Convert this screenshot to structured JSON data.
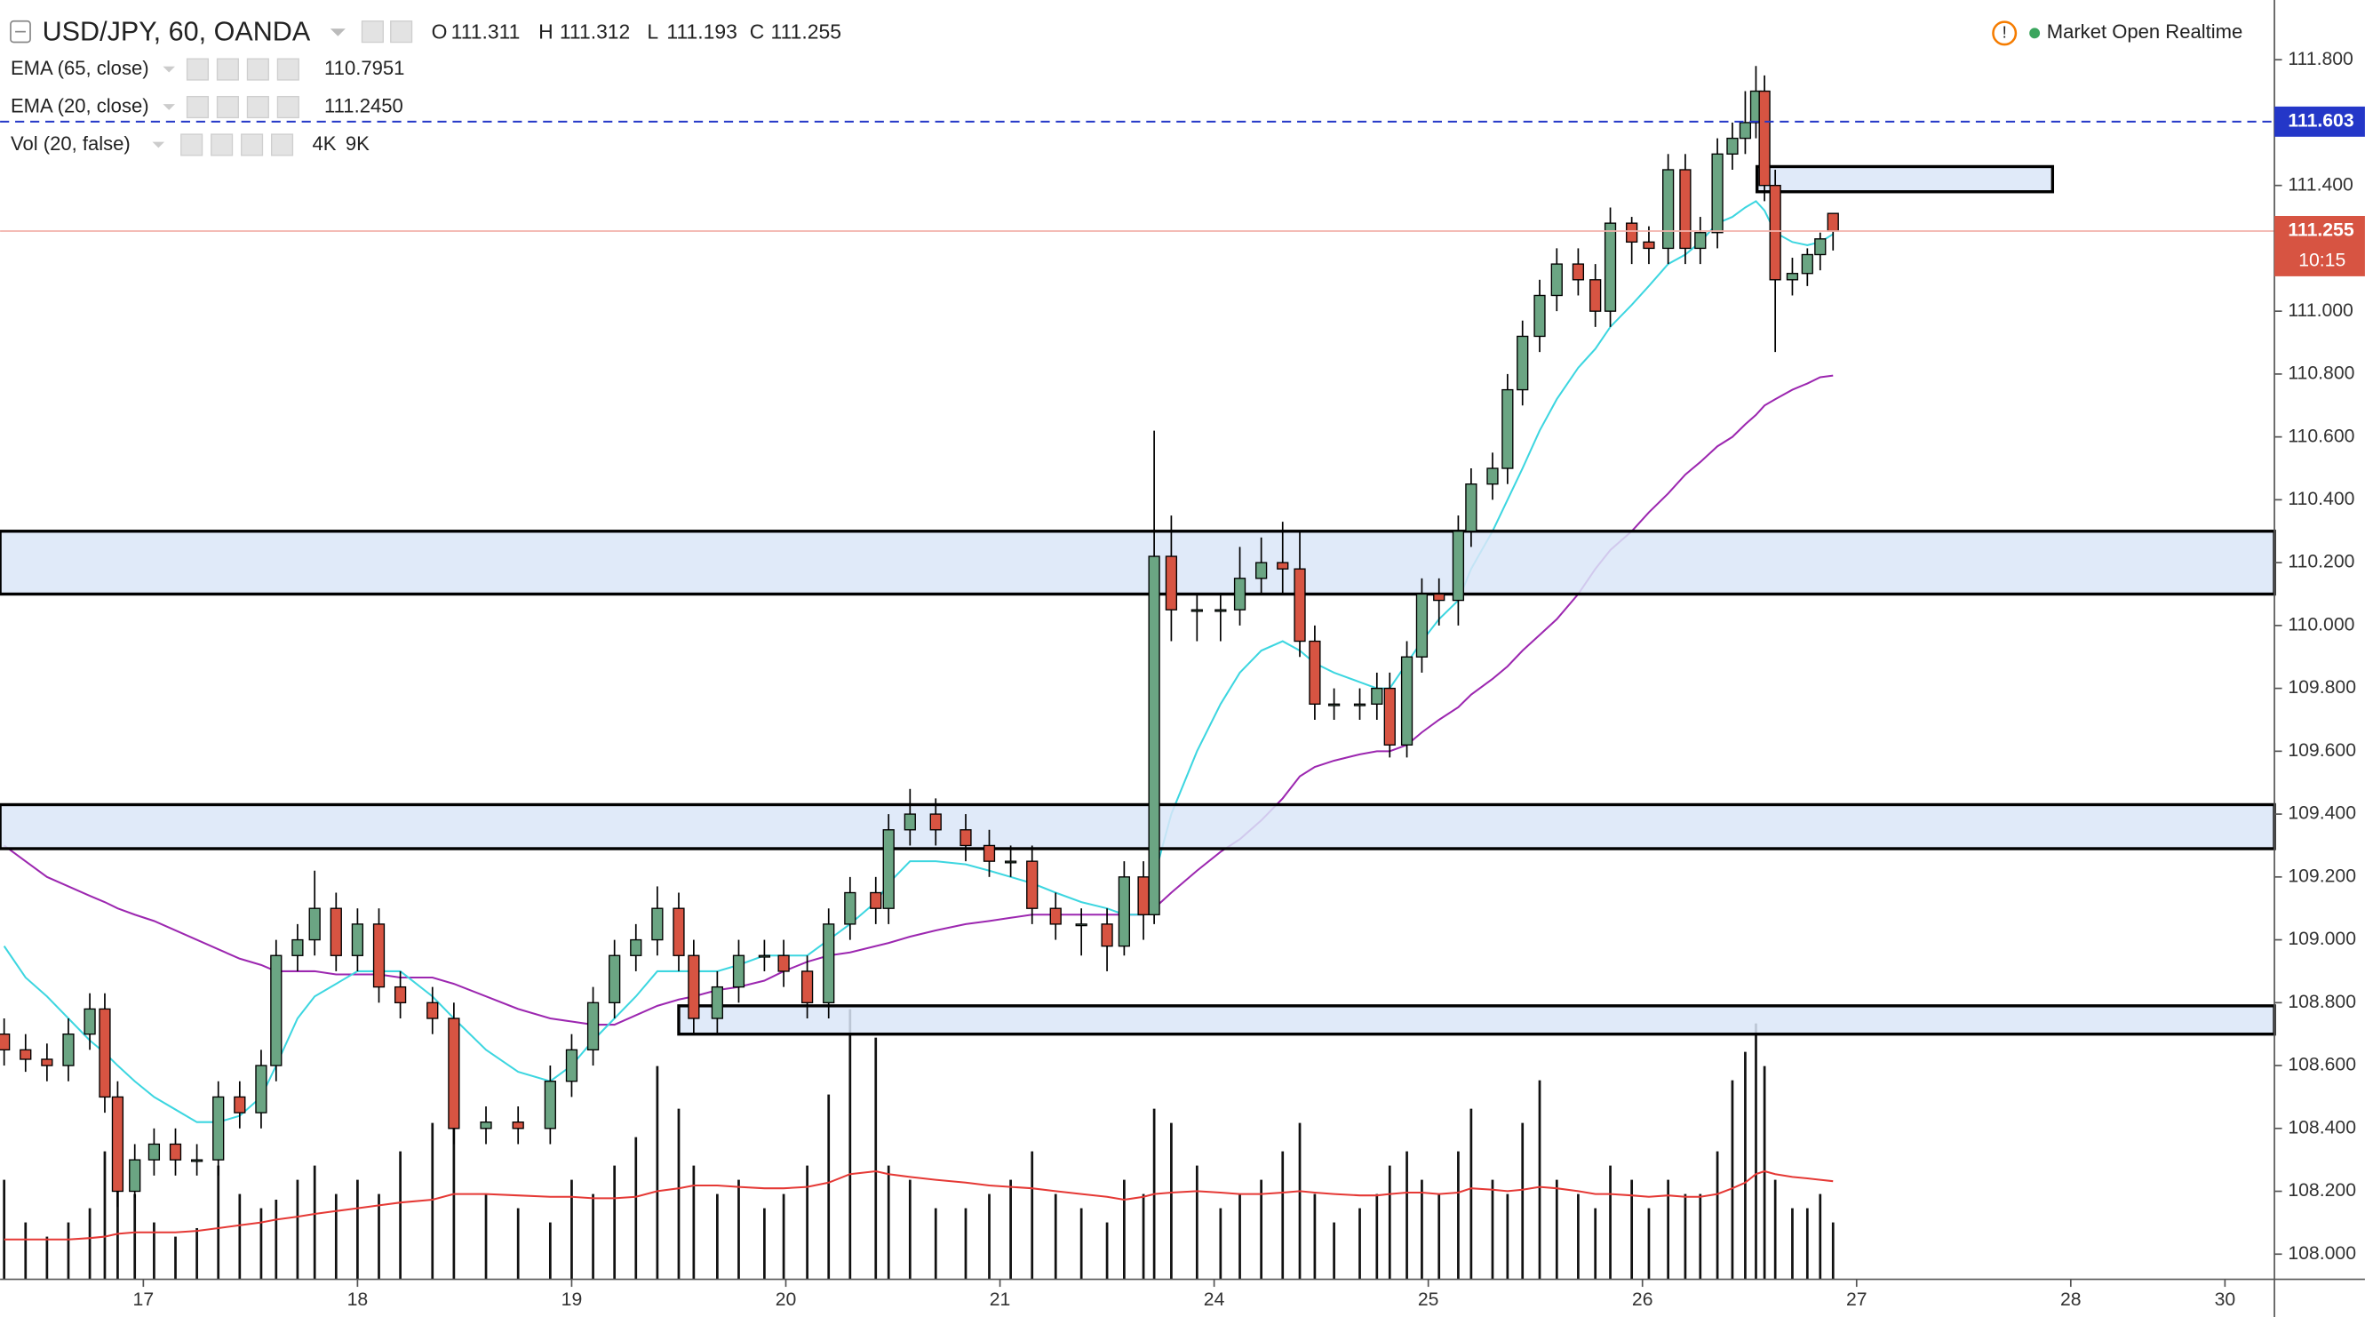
{
  "chart_data": {
    "type": "candlestick",
    "title": "USD/JPY, 60, OANDA",
    "ohlc_keys": [
      "O",
      "H",
      "L",
      "C"
    ],
    "status": "Market Open Realtime",
    "countdown": "10:15",
    "up_color": "#6ba583",
    "down_color": "#d75442",
    "xlim": [
      0.331,
      10.951
    ],
    "ylim": [
      107.92,
      111.99
    ],
    "y2lim": [
      0,
      45000
    ],
    "grid": false,
    "xticks": [
      {
        "value": 1,
        "label": "17"
      },
      {
        "value": 2,
        "label": "18"
      },
      {
        "value": 3,
        "label": "19"
      },
      {
        "value": 4,
        "label": "20"
      },
      {
        "value": 5,
        "label": "21"
      },
      {
        "value": 6,
        "label": "24"
      },
      {
        "value": 7,
        "label": "25"
      },
      {
        "value": 8,
        "label": "26"
      },
      {
        "value": 9,
        "label": "27"
      },
      {
        "value": 10,
        "label": "28"
      },
      {
        "value": 10.72,
        "label": "30"
      }
    ],
    "yticks": [
      {
        "value": 108.0,
        "label": "108.000"
      },
      {
        "value": 108.2,
        "label": "108.200"
      },
      {
        "value": 108.4,
        "label": "108.400"
      },
      {
        "value": 108.6,
        "label": "108.600"
      },
      {
        "value": 108.8,
        "label": "108.800"
      },
      {
        "value": 109.0,
        "label": "109.000"
      },
      {
        "value": 109.2,
        "label": "109.200"
      },
      {
        "value": 109.4,
        "label": "109.400"
      },
      {
        "value": 109.6,
        "label": "109.600"
      },
      {
        "value": 109.8,
        "label": "109.800"
      },
      {
        "value": 110.0,
        "label": "110.000"
      },
      {
        "value": 110.2,
        "label": "110.200"
      },
      {
        "value": 110.4,
        "label": "110.400"
      },
      {
        "value": 110.6,
        "label": "110.600"
      },
      {
        "value": 110.8,
        "label": "110.800"
      },
      {
        "value": 111.0,
        "label": "111.000"
      },
      {
        "value": 111.2,
        "label": "111.200"
      },
      {
        "value": 111.4,
        "label": "111.400"
      },
      {
        "value": 111.6,
        "label": "111.600"
      },
      {
        "value": 111.8,
        "label": "111.800"
      }
    ],
    "x": [
      0.35,
      0.45,
      0.55,
      0.65,
      0.75,
      0.82,
      0.88,
      0.96,
      1.05,
      1.15,
      1.25,
      1.35,
      1.45,
      1.55,
      1.62,
      1.72,
      1.8,
      1.9,
      2.0,
      2.1,
      2.2,
      2.35,
      2.45,
      2.6,
      2.75,
      2.9,
      3.0,
      3.1,
      3.2,
      3.3,
      3.4,
      3.5,
      3.57,
      3.68,
      3.78,
      3.9,
      3.99,
      4.1,
      4.2,
      4.3,
      4.42,
      4.48,
      4.58,
      4.7,
      4.84,
      4.95,
      5.05,
      5.15,
      5.26,
      5.38,
      5.5,
      5.58,
      5.67,
      5.72,
      5.8,
      5.92,
      6.03,
      6.12,
      6.22,
      6.32,
      6.4,
      6.47,
      6.56,
      6.68,
      6.76,
      6.82,
      6.9,
      6.97,
      7.05,
      7.14,
      7.2,
      7.3,
      7.37,
      7.44,
      7.52,
      7.6,
      7.7,
      7.78,
      7.85,
      7.95,
      8.03,
      8.12,
      8.2,
      8.27,
      8.35,
      8.42,
      8.48,
      8.53,
      8.57,
      8.62,
      8.7,
      8.77,
      8.83,
      8.89
    ],
    "open": [
      108.7,
      108.65,
      108.62,
      108.6,
      108.7,
      108.78,
      108.5,
      108.2,
      108.3,
      108.35,
      108.3,
      108.3,
      108.5,
      108.45,
      108.6,
      108.95,
      109.0,
      109.1,
      108.95,
      109.05,
      108.85,
      108.8,
      108.75,
      108.4,
      108.42,
      108.4,
      108.55,
      108.65,
      108.8,
      108.95,
      109.0,
      109.1,
      108.95,
      108.75,
      108.85,
      108.95,
      108.95,
      108.9,
      108.8,
      109.05,
      109.15,
      109.1,
      109.35,
      109.4,
      109.35,
      109.3,
      109.25,
      109.25,
      109.1,
      109.05,
      109.05,
      108.98,
      109.2,
      109.08,
      110.22,
      110.05,
      110.05,
      110.05,
      110.15,
      110.2,
      110.18,
      109.95,
      109.75,
      109.75,
      109.75,
      109.8,
      109.62,
      109.9,
      110.1,
      110.08,
      110.3,
      110.45,
      110.5,
      110.75,
      110.92,
      111.05,
      111.15,
      111.1,
      111.0,
      111.28,
      111.22,
      111.2,
      111.45,
      111.2,
      111.25,
      111.5,
      111.55,
      111.6,
      111.7,
      111.4,
      111.1,
      111.12,
      111.18,
      111.311
    ],
    "high": [
      108.75,
      108.7,
      108.67,
      108.75,
      108.83,
      108.83,
      108.55,
      108.35,
      108.4,
      108.4,
      108.35,
      108.55,
      108.55,
      108.65,
      109.0,
      109.05,
      109.22,
      109.15,
      109.1,
      109.1,
      108.9,
      108.85,
      108.8,
      108.47,
      108.47,
      108.6,
      108.7,
      108.85,
      109.0,
      109.05,
      109.17,
      109.15,
      109.0,
      108.9,
      109.0,
      109.0,
      109.0,
      108.95,
      109.1,
      109.2,
      109.2,
      109.4,
      109.48,
      109.45,
      109.4,
      109.35,
      109.3,
      109.3,
      109.15,
      109.1,
      109.1,
      109.25,
      109.25,
      110.62,
      110.35,
      110.1,
      110.1,
      110.25,
      110.28,
      110.33,
      110.3,
      110.0,
      109.8,
      109.8,
      109.85,
      109.85,
      109.95,
      110.15,
      110.15,
      110.35,
      110.5,
      110.55,
      110.8,
      110.97,
      111.1,
      111.2,
      111.2,
      111.15,
      111.33,
      111.3,
      111.27,
      111.5,
      111.5,
      111.3,
      111.55,
      111.6,
      111.7,
      111.78,
      111.75,
      111.45,
      111.17,
      111.2,
      111.25,
      111.312
    ],
    "low": [
      108.6,
      108.58,
      108.55,
      108.55,
      108.65,
      108.45,
      108.15,
      108.18,
      108.25,
      108.25,
      108.25,
      108.25,
      108.4,
      108.4,
      108.55,
      108.9,
      108.95,
      108.9,
      108.9,
      108.8,
      108.75,
      108.7,
      108.35,
      108.35,
      108.35,
      108.35,
      108.5,
      108.6,
      108.75,
      108.9,
      108.95,
      108.9,
      108.7,
      108.7,
      108.8,
      108.9,
      108.85,
      108.75,
      108.75,
      109.0,
      109.05,
      109.05,
      109.3,
      109.3,
      109.25,
      109.2,
      109.2,
      109.05,
      109.0,
      108.95,
      108.9,
      108.95,
      109.0,
      109.05,
      109.95,
      109.95,
      109.95,
      110.0,
      110.1,
      110.1,
      109.9,
      109.7,
      109.7,
      109.7,
      109.7,
      109.58,
      109.58,
      109.85,
      110.0,
      110.0,
      110.25,
      110.4,
      110.45,
      110.7,
      110.87,
      111.0,
      111.05,
      110.95,
      110.95,
      111.15,
      111.15,
      111.15,
      111.15,
      111.15,
      111.2,
      111.45,
      111.5,
      111.55,
      111.35,
      110.87,
      111.05,
      111.08,
      111.13,
      111.193
    ],
    "close": [
      108.65,
      108.62,
      108.6,
      108.7,
      108.78,
      108.5,
      108.2,
      108.3,
      108.35,
      108.3,
      108.3,
      108.5,
      108.45,
      108.6,
      108.95,
      109.0,
      109.1,
      108.95,
      109.05,
      108.85,
      108.8,
      108.75,
      108.4,
      108.42,
      108.4,
      108.55,
      108.65,
      108.8,
      108.95,
      109.0,
      109.1,
      108.95,
      108.75,
      108.85,
      108.95,
      108.95,
      108.9,
      108.8,
      109.05,
      109.15,
      109.1,
      109.35,
      109.4,
      109.35,
      109.3,
      109.25,
      109.25,
      109.1,
      109.05,
      109.05,
      108.98,
      109.2,
      109.08,
      110.22,
      110.05,
      110.05,
      110.05,
      110.15,
      110.2,
      110.18,
      109.95,
      109.75,
      109.75,
      109.75,
      109.8,
      109.62,
      109.9,
      110.1,
      110.08,
      110.3,
      110.45,
      110.5,
      110.75,
      110.92,
      111.05,
      111.15,
      111.1,
      111.0,
      111.28,
      111.22,
      111.2,
      111.45,
      111.2,
      111.25,
      111.5,
      111.55,
      111.6,
      111.7,
      111.4,
      111.1,
      111.12,
      111.18,
      111.23,
      111.255
    ],
    "series": [
      {
        "name": "EMA (65, close)",
        "color": "#9c27b0",
        "value_label": "110.7951",
        "values": [
          109.3,
          109.25,
          109.2,
          109.17,
          109.14,
          109.12,
          109.1,
          109.08,
          109.06,
          109.03,
          109.0,
          108.97,
          108.94,
          108.92,
          108.9,
          108.9,
          108.9,
          108.89,
          108.89,
          108.89,
          108.88,
          108.88,
          108.86,
          108.82,
          108.78,
          108.75,
          108.74,
          108.73,
          108.73,
          108.76,
          108.79,
          108.81,
          108.82,
          108.84,
          108.85,
          108.87,
          108.9,
          108.93,
          108.95,
          108.96,
          108.98,
          108.99,
          109.01,
          109.03,
          109.05,
          109.06,
          109.07,
          109.08,
          109.08,
          109.08,
          109.08,
          109.08,
          109.08,
          109.1,
          109.15,
          109.22,
          109.28,
          109.32,
          109.38,
          109.45,
          109.52,
          109.55,
          109.57,
          109.59,
          109.6,
          109.6,
          109.62,
          109.66,
          109.7,
          109.74,
          109.78,
          109.83,
          109.87,
          109.92,
          109.97,
          110.02,
          110.1,
          110.18,
          110.24,
          110.3,
          110.36,
          110.42,
          110.48,
          110.52,
          110.57,
          110.6,
          110.64,
          110.67,
          110.7,
          110.72,
          110.75,
          110.77,
          110.79,
          110.7951
        ]
      },
      {
        "name": "EMA (20, close)",
        "color": "#3dd6e0",
        "value_label": "111.2450",
        "values": [
          108.98,
          108.88,
          108.82,
          108.75,
          108.68,
          108.64,
          108.6,
          108.55,
          108.5,
          108.46,
          108.42,
          108.42,
          108.44,
          108.5,
          108.6,
          108.75,
          108.82,
          108.86,
          108.9,
          108.9,
          108.9,
          108.82,
          108.75,
          108.65,
          108.58,
          108.55,
          108.6,
          108.68,
          108.75,
          108.82,
          108.9,
          108.9,
          108.9,
          108.9,
          108.92,
          108.95,
          108.95,
          108.95,
          109.0,
          109.05,
          109.12,
          109.18,
          109.25,
          109.25,
          109.24,
          109.22,
          109.2,
          109.18,
          109.15,
          109.12,
          109.1,
          109.08,
          109.08,
          109.2,
          109.4,
          109.6,
          109.75,
          109.85,
          109.92,
          109.95,
          109.92,
          109.88,
          109.85,
          109.82,
          109.8,
          109.8,
          109.88,
          109.95,
          110.02,
          110.08,
          110.18,
          110.3,
          110.4,
          110.5,
          110.62,
          110.72,
          110.82,
          110.88,
          110.95,
          111.02,
          111.08,
          111.15,
          111.18,
          111.22,
          111.28,
          111.3,
          111.33,
          111.35,
          111.32,
          111.25,
          111.22,
          111.21,
          111.22,
          111.245
        ]
      },
      {
        "name": "Vol (20, false)",
        "type": "bar",
        "axis": "y2",
        "color": "#111111",
        "legend_values": [
          "4K",
          "9K"
        ],
        "legend_colors": [
          "#222222",
          "#e53935"
        ],
        "values": [
          3500,
          2000,
          1500,
          2000,
          2500,
          4500,
          5000,
          3000,
          2000,
          1500,
          1800,
          4000,
          3000,
          2500,
          2800,
          3500,
          4000,
          3000,
          3500,
          3000,
          4500,
          5500,
          6500,
          3000,
          2500,
          2000,
          3500,
          3000,
          4000,
          5000,
          7500,
          6000,
          4000,
          3000,
          3500,
          2500,
          3000,
          4000,
          6500,
          9500,
          8500,
          4000,
          3500,
          2500,
          2500,
          3000,
          3500,
          4500,
          3000,
          2500,
          2000,
          3500,
          3000,
          6000,
          5500,
          4000,
          2500,
          3000,
          3500,
          4500,
          5500,
          3000,
          2000,
          2500,
          3000,
          4000,
          4500,
          3500,
          3000,
          4500,
          6000,
          3500,
          3000,
          5500,
          7000,
          3500,
          3000,
          2500,
          4000,
          3500,
          2500,
          3500,
          3000,
          3000,
          4500,
          7000,
          8000,
          9000,
          7500,
          3500,
          2500,
          2500,
          3000,
          2000
        ]
      },
      {
        "type": "line",
        "axis": "y2",
        "color": "#e53935",
        "values": [
          1400,
          1400,
          1400,
          1400,
          1450,
          1500,
          1600,
          1650,
          1650,
          1650,
          1700,
          1800,
          1900,
          2000,
          2100,
          2200,
          2300,
          2400,
          2500,
          2600,
          2700,
          2800,
          3000,
          3000,
          2950,
          2900,
          2900,
          2850,
          2850,
          2900,
          3100,
          3200,
          3300,
          3300,
          3250,
          3200,
          3200,
          3250,
          3400,
          3700,
          3800,
          3700,
          3600,
          3500,
          3400,
          3300,
          3250,
          3200,
          3100,
          3000,
          2900,
          2800,
          2900,
          3000,
          3050,
          3100,
          3050,
          3000,
          3000,
          3050,
          3100,
          3050,
          3000,
          2950,
          2950,
          3000,
          3050,
          3050,
          3000,
          3050,
          3200,
          3150,
          3100,
          3150,
          3250,
          3200,
          3100,
          3000,
          3000,
          2950,
          2900,
          2950,
          2900,
          2900,
          3000,
          3200,
          3400,
          3700,
          3800,
          3700,
          3600,
          3550,
          3500,
          3450
        ]
      }
    ],
    "zones": [
      {
        "low": 110.1,
        "high": 110.3
      },
      {
        "low": 109.29,
        "high": 109.43
      },
      {
        "low": 108.7,
        "high": 108.79,
        "x_start": 3.5
      },
      {
        "low": 111.38,
        "high": 111.46,
        "x_start": 8.535,
        "x_end": 9.915
      }
    ],
    "zone_color": "#dbe6f8",
    "alert_line": 111.603,
    "alert_color": "#2437c8",
    "price_line_color": "#f3b3ab"
  }
}
